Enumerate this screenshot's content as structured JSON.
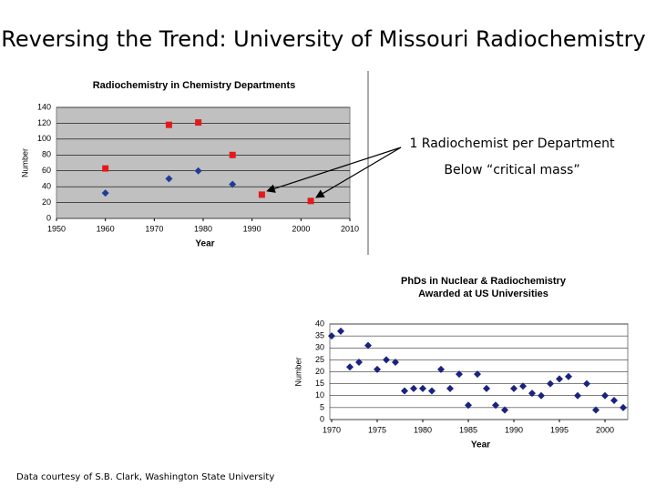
{
  "slide_title": "Reversing the Trend: University of Missouri Radiochemistry",
  "footer": "Data courtesy of S.B. Clark, Washington State University",
  "chart_data": [
    {
      "type": "scatter",
      "title": "Radiochemistry in Chemistry Departments",
      "xlabel": "Year",
      "ylabel": "Number",
      "xlim": [
        1950,
        2010
      ],
      "xticks": [
        1950,
        1960,
        1970,
        1980,
        1990,
        2000,
        2010
      ],
      "ylim": [
        0,
        140
      ],
      "yticks": [
        0,
        20,
        40,
        60,
        80,
        100,
        120,
        140
      ],
      "grid": true,
      "series": [
        {
          "color": "#e31a1c",
          "marker": "square",
          "x": [
            1960,
            1973,
            1979,
            1986,
            1992,
            2002
          ],
          "values": [
            63,
            118,
            121,
            80,
            30,
            22
          ]
        },
        {
          "color": "#1f3c99",
          "marker": "diamond",
          "x": [
            1960,
            1973,
            1979,
            1986
          ],
          "values": [
            32,
            50,
            60,
            43
          ]
        }
      ],
      "annotations": [
        "1 Radiochemist per Department",
        "Below “critical mass”"
      ]
    },
    {
      "type": "scatter",
      "title": [
        "PhDs in Nuclear & Radiochemistry",
        "Awarded at US Universities"
      ],
      "xlabel": "Year",
      "ylabel": "Number",
      "xlim": [
        1970,
        2002.5
      ],
      "xticks": [
        1970,
        1975,
        1980,
        1985,
        1990,
        1995,
        2000
      ],
      "ylim": [
        0,
        40
      ],
      "yticks": [
        0,
        5,
        10,
        15,
        20,
        25,
        30,
        35,
        40
      ],
      "grid": true,
      "series": [
        {
          "color": "#1a237e",
          "marker": "diamond",
          "x": [
            1970,
            1971,
            1972,
            1973,
            1974,
            1975,
            1976,
            1977,
            1978,
            1979,
            1980,
            1981,
            1982,
            1983,
            1984,
            1985,
            1986,
            1987,
            1988,
            1989,
            1990,
            1991,
            1992,
            1993,
            1994,
            1995,
            1996,
            1997,
            1998,
            1999,
            2000,
            2001,
            2002
          ],
          "values": [
            35,
            37,
            22,
            24,
            31,
            21,
            25,
            24,
            12,
            13,
            13,
            12,
            21,
            13,
            19,
            6,
            19,
            13,
            6,
            4,
            13,
            14,
            11,
            10,
            15,
            17,
            18,
            10,
            15,
            4,
            10,
            8,
            5
          ]
        }
      ]
    }
  ]
}
